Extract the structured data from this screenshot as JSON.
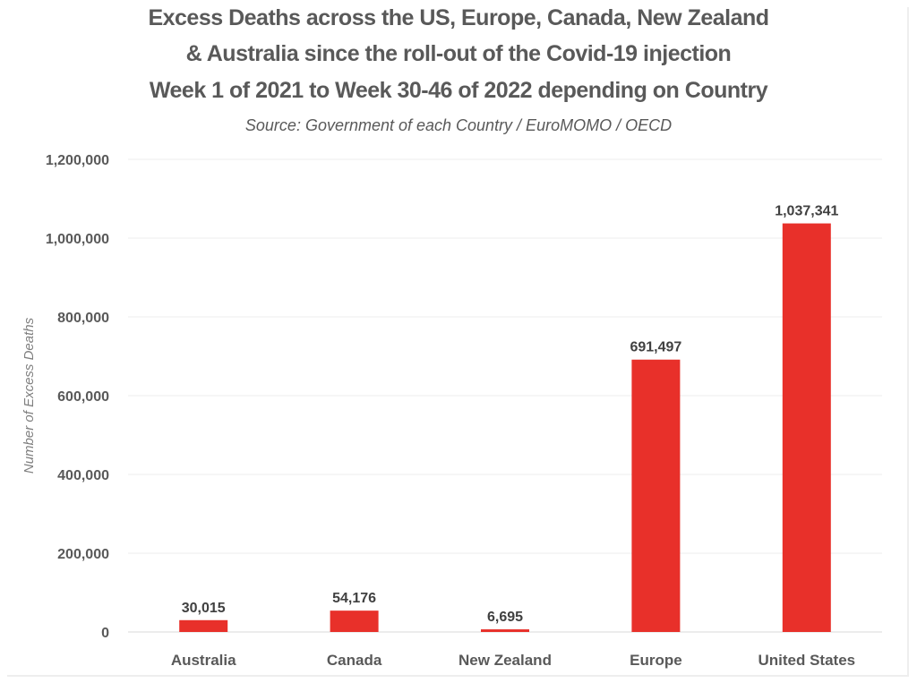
{
  "chart_data": {
    "type": "bar",
    "title_lines": [
      "Excess Deaths across the US, Europe, Canada, New Zealand",
      "& Australia since the roll-out of the Covid-19 injection",
      "Week 1 of 2021 to Week 30-46 of 2022 depending on Country"
    ],
    "subtitle": "Source: Government of each Country / EuroMOMO / OECD",
    "xlabel": "",
    "ylabel": "Number of Excess Deaths",
    "categories": [
      "Australia",
      "Canada",
      "New Zealand",
      "Europe",
      "United States"
    ],
    "values": [
      30015,
      54176,
      6695,
      691497,
      1037341
    ],
    "data_labels": [
      "30,015",
      "54,176",
      "6,695",
      "691,497",
      "1,037,341"
    ],
    "ylim": [
      0,
      1200000
    ],
    "yticks": [
      0,
      200000,
      400000,
      600000,
      800000,
      1000000,
      1200000
    ],
    "ytick_labels": [
      "0",
      "200,000",
      "400,000",
      "600,000",
      "800,000",
      "1,000,000",
      "1,200,000"
    ],
    "grid": true,
    "legend": "none",
    "bar_color": "#e8302a"
  }
}
